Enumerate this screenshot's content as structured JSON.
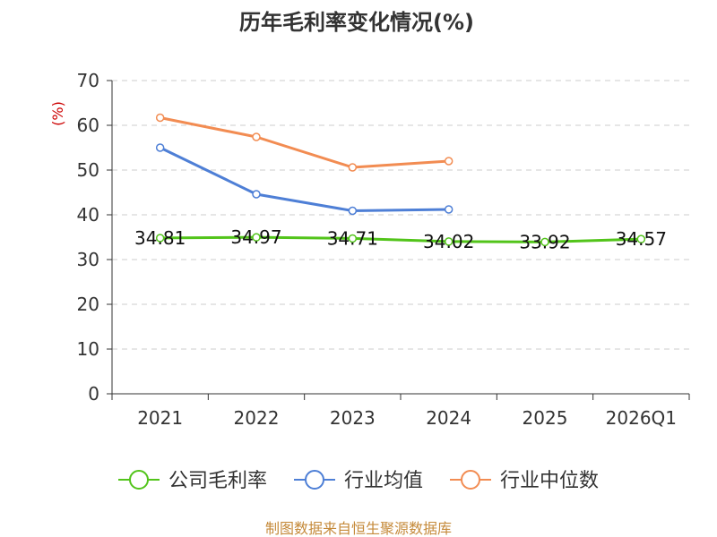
{
  "chart_data": {
    "type": "line",
    "title": "历年毛利率变化情况(%)",
    "ylabel": "(%)",
    "xlabel": "",
    "ylim": [
      0,
      70
    ],
    "yticks": [
      0,
      10,
      20,
      30,
      40,
      50,
      60,
      70
    ],
    "categories": [
      "2021",
      "2022",
      "2023",
      "2024",
      "2025",
      "2026Q1"
    ],
    "series": [
      {
        "name": "公司毛利率",
        "color": "#52c41a",
        "values": [
          34.81,
          34.97,
          34.71,
          34.02,
          33.92,
          34.57
        ],
        "labels": [
          "34.81",
          "34.97",
          "34.71",
          "34.02",
          "33.92",
          "34.57"
        ]
      },
      {
        "name": "行业均值",
        "color": "#4e7fd6",
        "values": [
          55.0,
          44.6,
          40.9,
          41.2,
          null,
          null
        ]
      },
      {
        "name": "行业中位数",
        "color": "#f28c52",
        "values": [
          61.7,
          57.4,
          50.6,
          52.0,
          null,
          null
        ]
      }
    ],
    "legend_position": "bottom",
    "grid": true
  },
  "footer": {
    "source": "制图数据来自恒生聚源数据库"
  }
}
